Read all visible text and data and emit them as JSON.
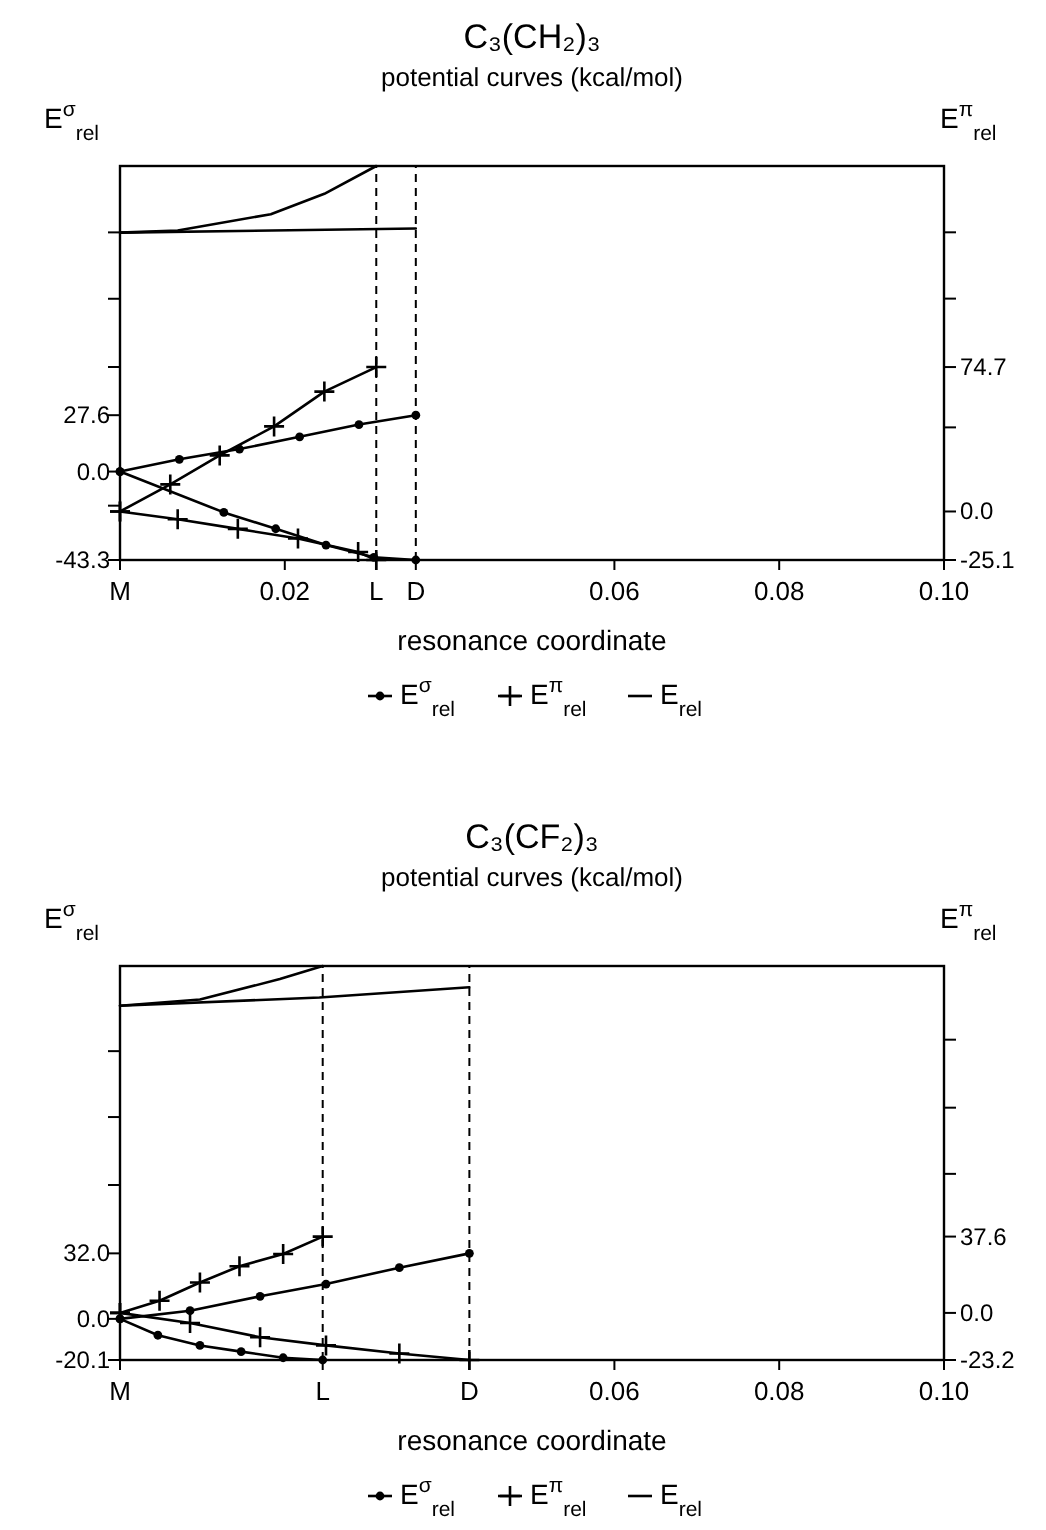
{
  "chart_data": [
    {
      "type": "line",
      "title": "C₃(CH₂)₃",
      "subtitle": "potential curves (kcal/mol)",
      "xlabel": "resonance coordinate",
      "ylabel": "E$^{σ}$$_{rel}$",
      "y2label": "E$^{π}$$_{rel}$",
      "legend": "bottom",
      "xlim": [
        0,
        0.1
      ],
      "xticks": [
        {
          "value": 0,
          "label": "M"
        },
        0.02,
        {
          "value": 0.0311,
          "label": "L"
        },
        {
          "value": 0.0359,
          "label": "D"
        },
        0.06,
        0.08,
        {
          "value": 0.1,
          "label": "0.10"
        }
      ],
      "ylim": [
        -43.3,
        149.6
      ],
      "yticks": [
        -43.3,
        {
          "value": -16.7,
          "label": null
        },
        {
          "value": 0,
          "label": "0.0"
        },
        27.6,
        {
          "value": 51.2,
          "label": null
        },
        {
          "value": 84.6,
          "label": null
        },
        {
          "value": 117.1,
          "label": null
        }
      ],
      "y2lim": [
        -25.1,
        178.7
      ],
      "y2ticks": [
        -25.1,
        {
          "value": 0,
          "label": "0.0"
        },
        {
          "value": 43.5,
          "label": null
        },
        74.7,
        {
          "value": 110.1,
          "label": null
        },
        {
          "value": 144.4,
          "label": null
        }
      ],
      "ref_lines": [
        {
          "axis": "x",
          "value": 0.0311,
          "line_style": "dashed"
        },
        {
          "axis": "x",
          "value": 0.0359,
          "line_style": "dashed"
        }
      ],
      "series": [
        {
          "name": "E$^{σ}$$_{rel}$",
          "color": "#000000",
          "marker": "circle",
          "x": [
            0,
            0.0072,
            0.0145,
            0.0218,
            0.029,
            0.0359
          ],
          "values": [
            0,
            6,
            11,
            17,
            23,
            27.6
          ]
        },
        {
          "name": "E$^{π}$$_{rel}$",
          "color": "#000000",
          "marker": "cross",
          "axis": "y2",
          "x": [
            0,
            0.0061,
            0.0121,
            0.0187,
            0.0248,
            0.0311
          ],
          "values": [
            0,
            14,
            29,
            44,
            62,
            74.7
          ]
        },
        {
          "name": "E$_{rel}$",
          "color": "#000000",
          "marker": "none",
          "x": [
            0,
            0.007,
            0.0183,
            0.0248,
            0.0311
          ],
          "values": [
            117,
            118,
            126,
            136,
            149.6
          ]
        },
        {
          "color": "#000000",
          "marker": "circle",
          "x": [
            0,
            0.0126,
            0.0189,
            0.025,
            0.0308,
            0.0359
          ],
          "values": [
            0,
            -20,
            -28,
            -36,
            -42,
            -43.3
          ]
        },
        {
          "color": "#000000",
          "marker": "cross",
          "axis": "y2",
          "x": [
            0,
            0.007,
            0.0143,
            0.0216,
            0.0289,
            0.0311
          ],
          "values": [
            0,
            -4,
            -9,
            -14,
            -21,
            -25.1
          ]
        },
        {
          "color": "#000000",
          "marker": "none",
          "x": [
            0,
            0.0359
          ],
          "values": [
            117,
            119
          ]
        }
      ]
    },
    {
      "type": "line",
      "title": "C₃(CF₂)₃",
      "subtitle": "potential curves (kcal/mol)",
      "xlabel": "resonance coordinate",
      "ylabel": "E$^{σ}$$_{rel}$",
      "y2label": "E$^{π}$$_{rel}$",
      "legend": "bottom",
      "xlim": [
        0,
        0.1
      ],
      "xticks": [
        {
          "value": 0,
          "label": "M"
        },
        {
          "value": 0.0246,
          "label": "L"
        },
        {
          "value": 0.0424,
          "label": "D"
        },
        0.06,
        0.08,
        {
          "value": 0.1,
          "label": "0.10"
        }
      ],
      "ylim": [
        -20.1,
        172.4
      ],
      "yticks": [
        -20.1,
        {
          "value": 0,
          "label": "0.0"
        },
        {
          "value": 32,
          "label": "32.0"
        },
        {
          "value": 65.4,
          "label": null
        },
        {
          "value": 98.6,
          "label": null
        },
        {
          "value": 130.8,
          "label": null
        }
      ],
      "y2lim": [
        -23.2,
        170.9
      ],
      "y2ticks": [
        -23.2,
        {
          "value": 0,
          "label": "0.0"
        },
        37.6,
        {
          "value": 68.5,
          "label": null
        },
        {
          "value": 101.1,
          "label": null
        },
        {
          "value": 134.6,
          "label": null
        }
      ],
      "ref_lines": [
        {
          "axis": "x",
          "value": 0.0246,
          "line_style": "dashed"
        },
        {
          "axis": "x",
          "value": 0.0424,
          "line_style": "dashed"
        }
      ],
      "series": [
        {
          "name": "E$^{σ}$$_{rel}$",
          "color": "#000000",
          "marker": "circle",
          "x": [
            0,
            0.0085,
            0.017,
            0.025,
            0.0339,
            0.0424
          ],
          "values": [
            0,
            4,
            11,
            17,
            25,
            32
          ]
        },
        {
          "name": "E$^{π}$$_{rel}$",
          "color": "#000000",
          "marker": "cross",
          "axis": "y2",
          "x": [
            0,
            0.0048,
            0.0097,
            0.0145,
            0.0198,
            0.0246
          ],
          "values": [
            0,
            6,
            15,
            23,
            29,
            37.6
          ]
        },
        {
          "name": "E$_{rel}$",
          "color": "#000000",
          "marker": "none",
          "x": [
            0,
            0.0097,
            0.0194,
            0.0246
          ],
          "values": [
            153,
            156,
            166,
            172.4
          ]
        },
        {
          "color": "#000000",
          "marker": "circle",
          "x": [
            0,
            0.0046,
            0.0097,
            0.0147,
            0.0198,
            0.0246
          ],
          "values": [
            0,
            -8,
            -13,
            -16,
            -19,
            -20.1
          ]
        },
        {
          "color": "#000000",
          "marker": "cross",
          "axis": "y2",
          "x": [
            0,
            0.0085,
            0.017,
            0.025,
            0.0339,
            0.0424
          ],
          "values": [
            0,
            -5,
            -12,
            -16,
            -20,
            -23.2
          ]
        },
        {
          "color": "#000000",
          "marker": "none",
          "x": [
            0,
            0.0242,
            0.0424
          ],
          "values": [
            153,
            157,
            162
          ]
        }
      ]
    }
  ]
}
